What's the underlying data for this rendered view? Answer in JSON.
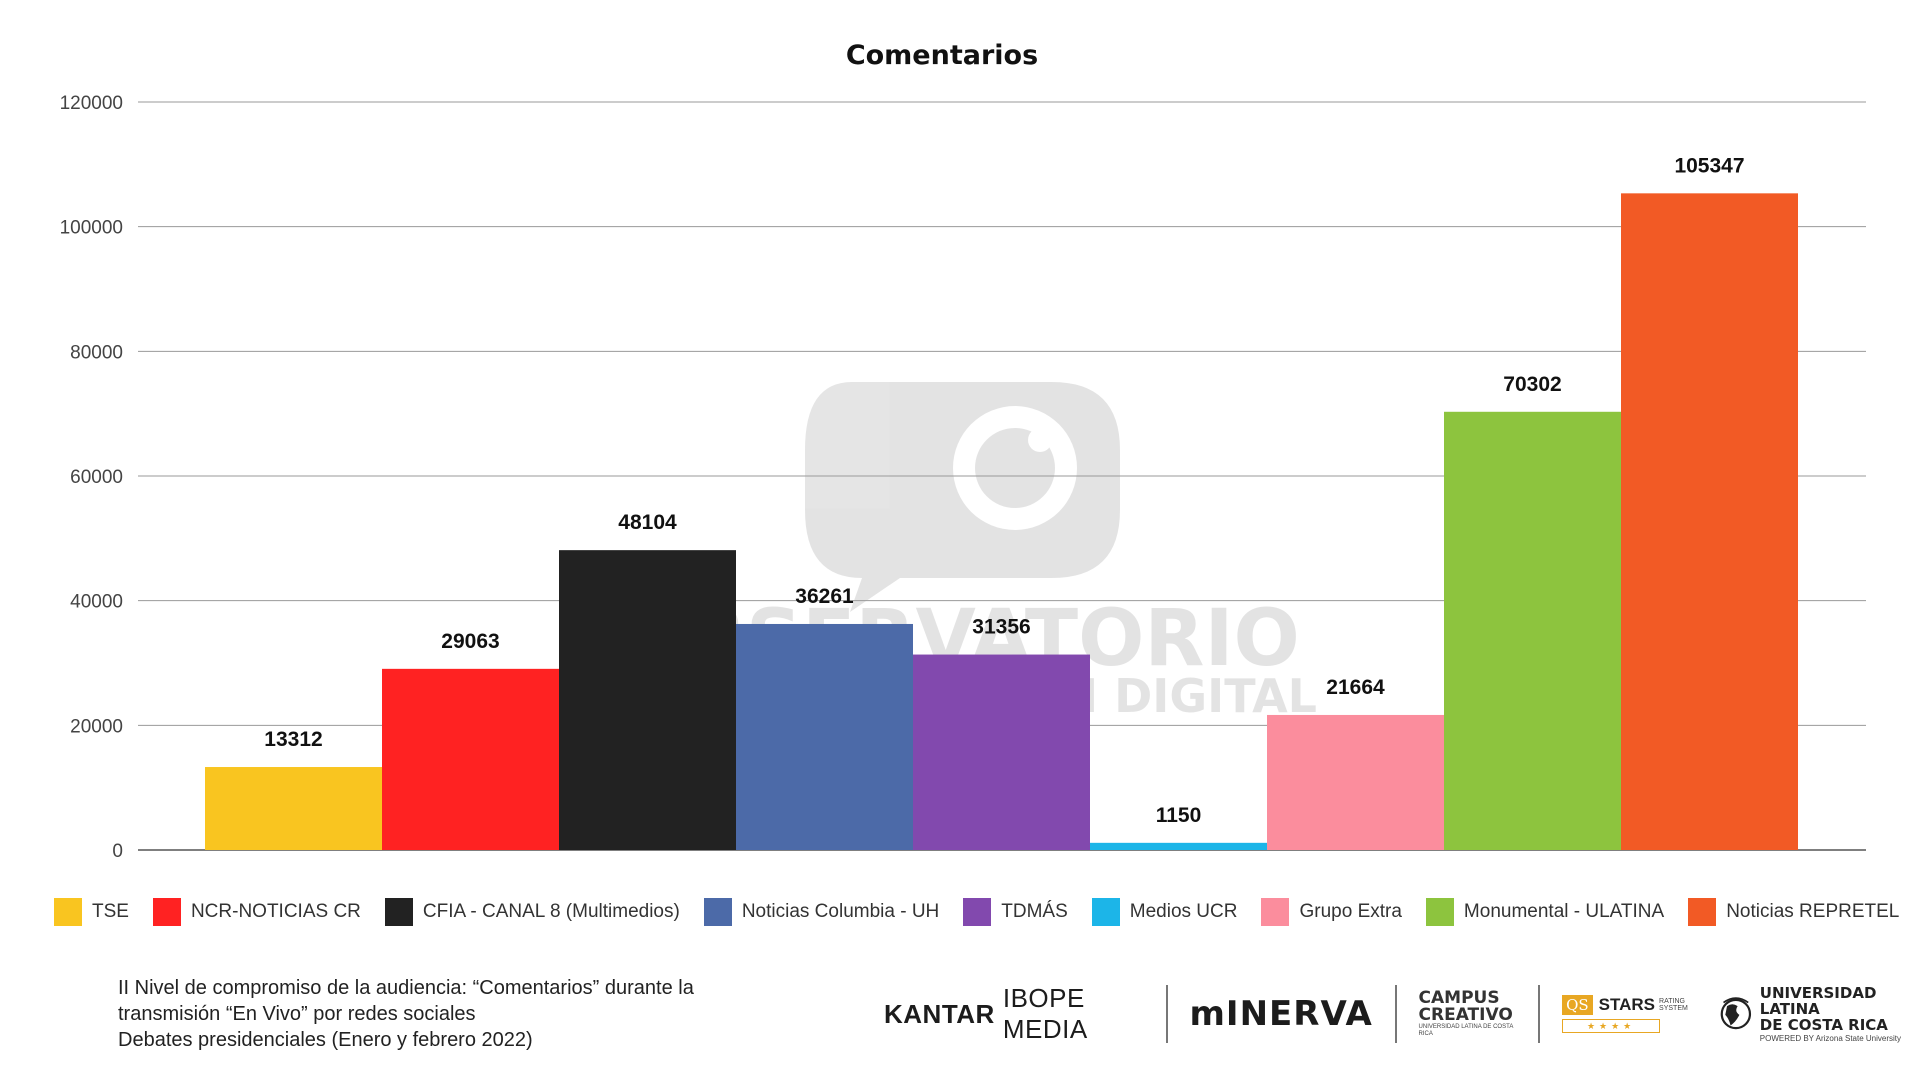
{
  "chart_data": {
    "type": "bar",
    "title": "Comentarios",
    "xlabel": "",
    "ylabel": "",
    "ylim": [
      0,
      120000
    ],
    "yticks": [
      0,
      20000,
      40000,
      60000,
      80000,
      100000,
      120000
    ],
    "grid": true,
    "legend_position": "bottom",
    "categories": [
      "TSE",
      "NCR-NOTICIAS CR",
      "CFIA - CANAL 8 (Multimedios)",
      "Noticias Columbia - UH",
      "TDMÁS",
      "Medios UCR",
      "Grupo Extra",
      "Monumental - ULATINA",
      "Noticias REPRETEL"
    ],
    "values": [
      13312,
      29063,
      48104,
      36261,
      31356,
      1150,
      21664,
      70302,
      105347
    ],
    "colors": [
      "#F9C520",
      "#FF2222",
      "#222222",
      "#4C6AA8",
      "#8249AE",
      "#1CB5E8",
      "#FB8D9D",
      "#8DC43E",
      "#F25A25"
    ]
  },
  "watermark": {
    "line1": "OBSERVATORIO",
    "line2": "DE COMUNICACIÓN DIGITAL"
  },
  "caption": {
    "line1": "II Nivel de compromiso de la audiencia: “Comentarios” durante la",
    "line2": "transmisión “En Vivo” por redes sociales",
    "line3": "Debates presidenciales (Enero y febrero 2022)"
  },
  "logos": {
    "kantar_bold": "KANTAR",
    "kantar_light": "IBOPE MEDIA",
    "minerva": "mINERVA",
    "campus_1": "CAMPUS",
    "campus_2": "CREATIVO",
    "campus_3": "UNIVERSIDAD LATINA DE COSTA RICA",
    "qs_badge": "QS",
    "qs_stars": "STARS",
    "qs_sub": "RATING SYSTEM",
    "qs_strip": "★★★★",
    "ul_1": "UNIVERSIDAD LATINA",
    "ul_2": "DE COSTA RICA",
    "ul_3": "POWERED BY Arizona State University"
  }
}
